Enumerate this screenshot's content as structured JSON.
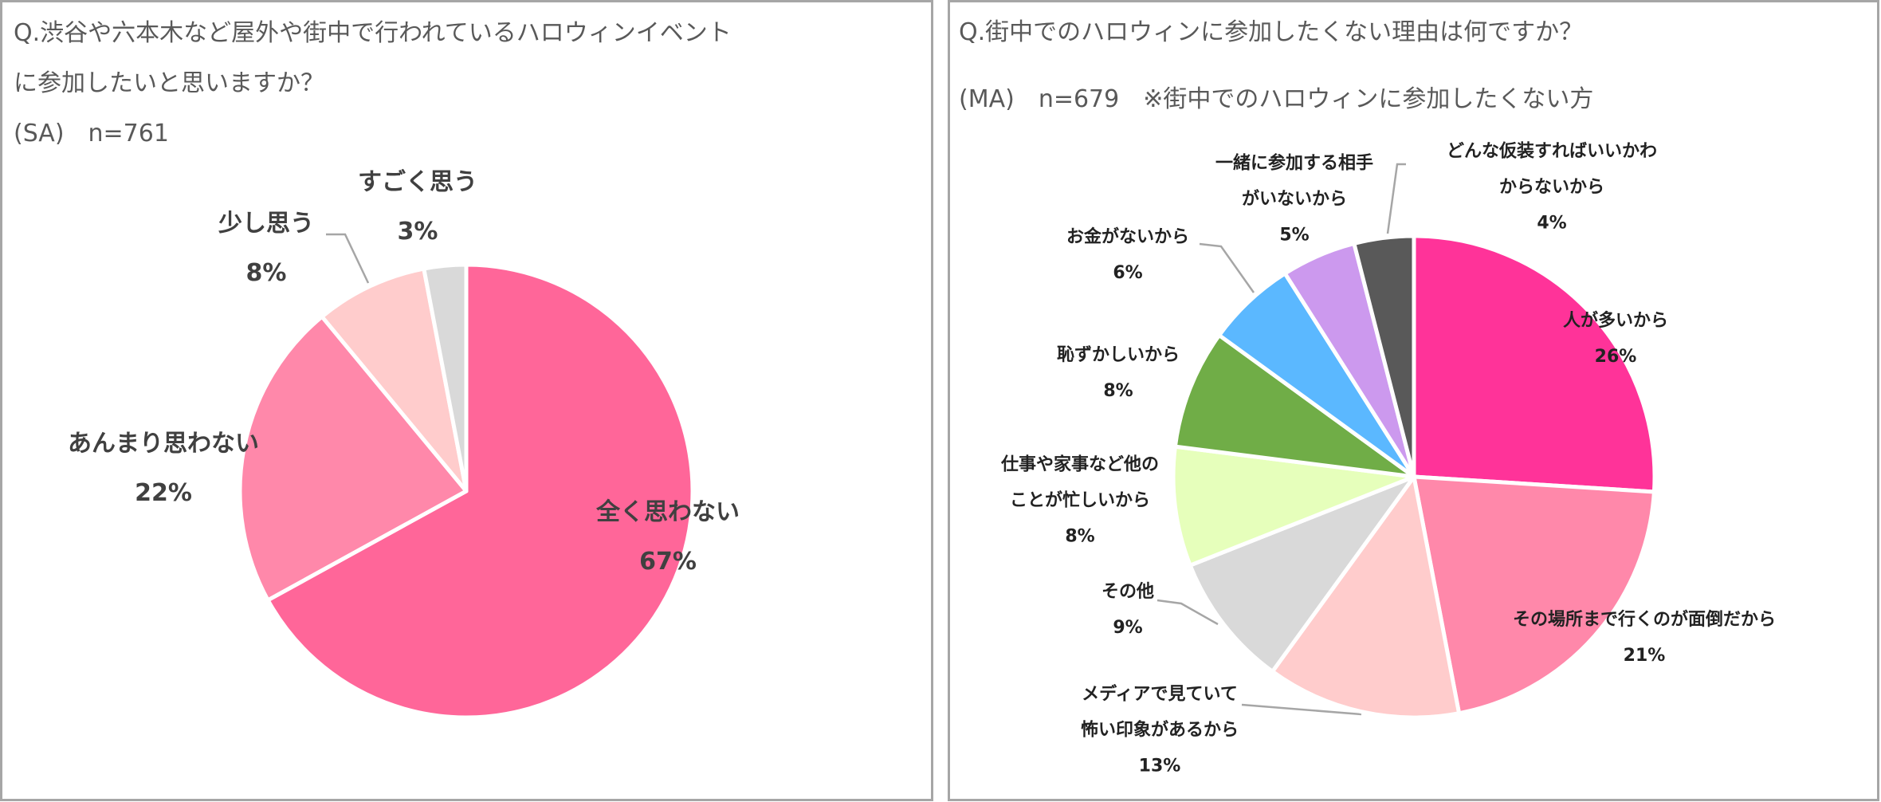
{
  "chart_data": [
    {
      "type": "pie",
      "title": "Q.渋谷や六本木など屋外や街中で行われているハロウィンイベントに参加したいと思いますか？",
      "subtitle": "(SA)　n=761",
      "categories": [
        "全く思わない",
        "あんまり思わない",
        "少し思う",
        "すごく思う"
      ],
      "values": [
        67,
        22,
        8,
        3
      ],
      "value_labels": [
        "67%",
        "22%",
        "8%",
        "3%"
      ],
      "colors": [
        "#ff6699",
        "#ff88aa",
        "#ffcccc",
        "#d9d9d9"
      ]
    },
    {
      "type": "pie",
      "title": "Q.街中でのハロウィンに参加したくない理由は何ですか？",
      "subtitle": "(MA)　n=679　※街中でのハロウィンに参加したくない方",
      "categories": [
        "人が多いから",
        "その場所まで行くのが面倒だから",
        "メディアで見ていて怖い印象があるから",
        "その他",
        "仕事や家事など他のことが忙しいから",
        "恥ずかしいから",
        "お金がないから",
        "一緒に参加する相手がいないから",
        "どんな仮装すればいいかわからないから"
      ],
      "values": [
        26,
        21,
        13,
        9,
        8,
        8,
        6,
        5,
        4
      ],
      "value_labels": [
        "26%",
        "21%",
        "13%",
        "9%",
        "8%",
        "8%",
        "6%",
        "5%",
        "4%"
      ],
      "colors": [
        "#ff3399",
        "#ff88aa",
        "#ffcccc",
        "#d9d9d9",
        "#e6ffbb",
        "#70ad47",
        "#5bb8ff",
        "#cc99ee",
        "#595959"
      ]
    }
  ]
}
